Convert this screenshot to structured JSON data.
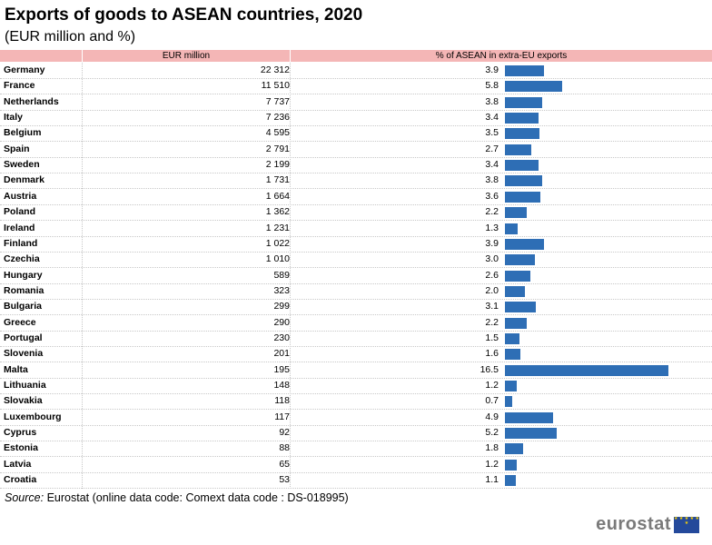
{
  "chart_data": {
    "type": "table",
    "title": "Exports of goods to ASEAN countries, 2020",
    "subtitle": "(EUR million and %)",
    "columns": [
      "EUR million",
      "% of ASEAN in extra-EU exports"
    ],
    "rows": [
      {
        "country": "Germany",
        "eur": "22 312",
        "pct": "3.9"
      },
      {
        "country": "France",
        "eur": "11 510",
        "pct": "5.8"
      },
      {
        "country": "Netherlands",
        "eur": "7 737",
        "pct": "3.8"
      },
      {
        "country": "Italy",
        "eur": "7 236",
        "pct": "3.4"
      },
      {
        "country": "Belgium",
        "eur": "4 595",
        "pct": "3.5"
      },
      {
        "country": "Spain",
        "eur": "2 791",
        "pct": "2.7"
      },
      {
        "country": "Sweden",
        "eur": "2 199",
        "pct": "3.4"
      },
      {
        "country": "Denmark",
        "eur": "1 731",
        "pct": "3.8"
      },
      {
        "country": "Austria",
        "eur": "1 664",
        "pct": "3.6"
      },
      {
        "country": "Poland",
        "eur": "1 362",
        "pct": "2.2"
      },
      {
        "country": "Ireland",
        "eur": "1 231",
        "pct": "1.3"
      },
      {
        "country": "Finland",
        "eur": "1 022",
        "pct": "3.9"
      },
      {
        "country": "Czechia",
        "eur": "1 010",
        "pct": "3.0"
      },
      {
        "country": "Hungary",
        "eur": "589",
        "pct": "2.6"
      },
      {
        "country": "Romania",
        "eur": "323",
        "pct": "2.0"
      },
      {
        "country": "Bulgaria",
        "eur": "299",
        "pct": "3.1"
      },
      {
        "country": "Greece",
        "eur": "290",
        "pct": "2.2"
      },
      {
        "country": "Portugal",
        "eur": "230",
        "pct": "1.5"
      },
      {
        "country": "Slovenia",
        "eur": "201",
        "pct": "1.6"
      },
      {
        "country": "Malta",
        "eur": "195",
        "pct": "16.5"
      },
      {
        "country": "Lithuania",
        "eur": "148",
        "pct": "1.2"
      },
      {
        "country": "Slovakia",
        "eur": "118",
        "pct": "0.7"
      },
      {
        "country": "Luxembourg",
        "eur": "117",
        "pct": "4.9"
      },
      {
        "country": "Cyprus",
        "eur": "92",
        "pct": "5.2"
      },
      {
        "country": "Estonia",
        "eur": "88",
        "pct": "1.8"
      },
      {
        "country": "Latvia",
        "eur": "65",
        "pct": "1.2"
      },
      {
        "country": "Croatia",
        "eur": "53",
        "pct": "1.1"
      }
    ],
    "bar_color": "#2e6eb5"
  },
  "source": {
    "label": "Source:",
    "text": "Eurostat (online data code: Comext data code : DS-018995)"
  },
  "logo": {
    "text": "eurostat",
    "flag_stars": "★ ★ ★ ★ ★ ★"
  }
}
